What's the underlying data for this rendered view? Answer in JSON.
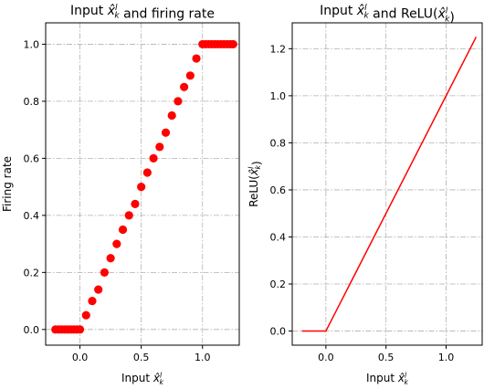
{
  "chart_data": [
    {
      "type": "scatter",
      "title": "Input x̂ and firing rate",
      "title_parts": {
        "pre": "Input ",
        "var": "x̂",
        "sup": "l",
        "sub": "k",
        "post": " and firing rate"
      },
      "xlabel": "Input x̂",
      "xlabel_parts": {
        "pre": "Input ",
        "var": "x̂",
        "sup": "l",
        "sub": "k"
      },
      "ylabel": "Firing rate",
      "xlim": [
        -0.28,
        1.3
      ],
      "ylim": [
        -0.055,
        1.075
      ],
      "xticks": [
        0.0,
        0.5,
        1.0
      ],
      "xtick_labels": [
        "0.0",
        "0.5",
        "1.0"
      ],
      "yticks": [
        0.0,
        0.2,
        0.4,
        0.6,
        0.8,
        1.0
      ],
      "ytick_labels": [
        "0.0",
        "0.2",
        "0.4",
        "0.6",
        "0.8",
        "1.0"
      ],
      "grid": true,
      "color": "#ff0000",
      "series": [
        {
          "x": [
            -0.2,
            -0.175,
            -0.15,
            -0.125,
            -0.1,
            -0.075,
            -0.05,
            -0.025,
            0.0,
            0.05,
            0.1,
            0.15,
            0.2,
            0.25,
            0.3,
            0.35,
            0.4,
            0.45,
            0.5,
            0.55,
            0.6,
            0.65,
            0.7,
            0.75,
            0.8,
            0.85,
            0.9,
            0.95,
            1.0,
            1.025,
            1.05,
            1.075,
            1.1,
            1.125,
            1.15,
            1.175,
            1.2,
            1.225,
            1.25
          ],
          "y": [
            0.0,
            0.0,
            0.0,
            0.0,
            0.0,
            0.0,
            0.0,
            0.0,
            0.0,
            0.05,
            0.1,
            0.14,
            0.2,
            0.25,
            0.3,
            0.35,
            0.4,
            0.44,
            0.5,
            0.55,
            0.6,
            0.64,
            0.69,
            0.75,
            0.8,
            0.85,
            0.89,
            0.95,
            1.0,
            1.0,
            1.0,
            1.0,
            1.0,
            1.0,
            1.0,
            1.0,
            1.0,
            1.0,
            1.0
          ]
        }
      ]
    },
    {
      "type": "line",
      "title": "Input x̂ and ReLU(x̂)",
      "title_parts": {
        "pre": "Input ",
        "var": "x̂",
        "sup": "l",
        "sub": "k",
        "mid": " and ReLU(",
        "var2": "x̂",
        "sup2": "l",
        "sub2": "k",
        "post": ")"
      },
      "xlabel": "Input x̂",
      "xlabel_parts": {
        "pre": "Input ",
        "var": "x̂",
        "sup": "l",
        "sub": "k"
      },
      "ylabel": "ReLU(x̂)",
      "ylabel_parts": {
        "pre": "ReLU(",
        "var": "x̂",
        "sup": "l",
        "sub": "k",
        "post": ")"
      },
      "xlim": [
        -0.28,
        1.3
      ],
      "ylim": [
        -0.06,
        1.31
      ],
      "xticks": [
        0.0,
        0.5,
        1.0
      ],
      "xtick_labels": [
        "0.0",
        "0.5",
        "1.0"
      ],
      "yticks": [
        0.0,
        0.2,
        0.4,
        0.6,
        0.8,
        1.0,
        1.2
      ],
      "ytick_labels": [
        "0.0",
        "0.2",
        "0.4",
        "0.6",
        "0.8",
        "1.0",
        "1.2"
      ],
      "grid": true,
      "color": "#ff0000",
      "series": [
        {
          "x": [
            -0.2,
            0.0,
            1.25
          ],
          "y": [
            0.0,
            0.0,
            1.25
          ]
        }
      ]
    }
  ]
}
